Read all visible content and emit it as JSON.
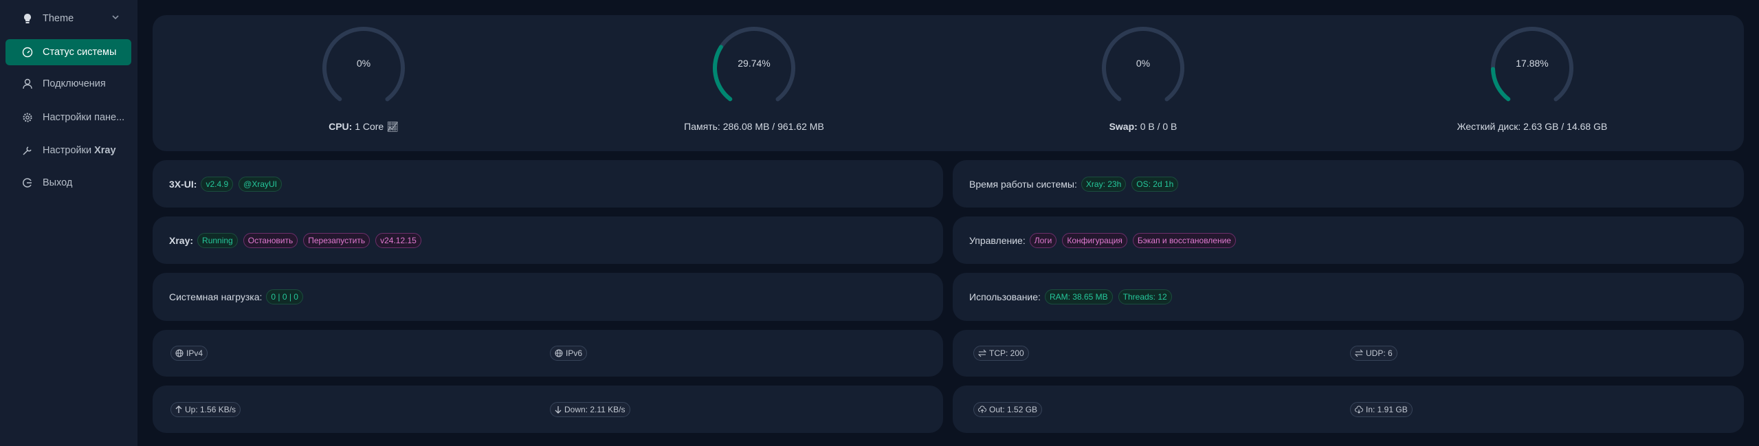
{
  "sidebar": {
    "theme": "Theme",
    "items": [
      {
        "label": "Статус системы",
        "icon": "dashboard-icon",
        "active": true
      },
      {
        "label": "Подключения",
        "icon": "user-icon"
      },
      {
        "label": "Настройки пане...",
        "icon": "gear-icon"
      },
      {
        "label": "Настройки",
        "bold": "Xray",
        "icon": "tool-icon"
      },
      {
        "label": "Выход",
        "icon": "logout-icon"
      }
    ]
  },
  "colors": {
    "accent": "#008771",
    "track": "#2c3a52",
    "active": "#006b5a"
  },
  "gauges": [
    {
      "value": 0,
      "text": "0%",
      "label_bold": "CPU:",
      "label": " 1 Core"
    },
    {
      "value": 29.74,
      "text": "29.74%",
      "label_bold": "",
      "label": "Память: 286.08 MB / 961.62 MB"
    },
    {
      "value": 0,
      "text": "0%",
      "label_bold": "Swap:",
      "label": " 0 B / 0 B"
    },
    {
      "value": 17.88,
      "text": "17.88%",
      "label_bold": "",
      "label": "Жесткий диск: 2.63 GB / 14.68 GB"
    }
  ],
  "panel": {
    "label": "3X-UI:",
    "version": "v2.4.9",
    "channel": "@XrayUI"
  },
  "uptime": {
    "label": "Время работы системы:",
    "xray": "Xray: 23h",
    "os": "OS: 2d 1h"
  },
  "xray": {
    "label": "Xray:",
    "status": "Running",
    "stop": "Остановить",
    "restart": "Перезапустить",
    "version": "v24.12.15"
  },
  "manage": {
    "label": "Управление:",
    "logs": "Логи",
    "config": "Конфигурация",
    "backup": "Бэкап и восстановление"
  },
  "load": {
    "label": "Системная нагрузка:",
    "value": "0 | 0 | 0"
  },
  "usage": {
    "label": "Использование:",
    "ram": "RAM: 38.65 MB",
    "threads": "Threads: 12"
  },
  "ip": {
    "v4": "IPv4",
    "v6": "IPv6"
  },
  "conn": {
    "tcp": "TCP: 200",
    "udp": "UDP: 6"
  },
  "speed": {
    "up": "Up: 1.56 KB/s",
    "down": "Down: 2.11 KB/s"
  },
  "traffic": {
    "out": "Out: 1.52 GB",
    "in": "In: 1.91 GB"
  }
}
